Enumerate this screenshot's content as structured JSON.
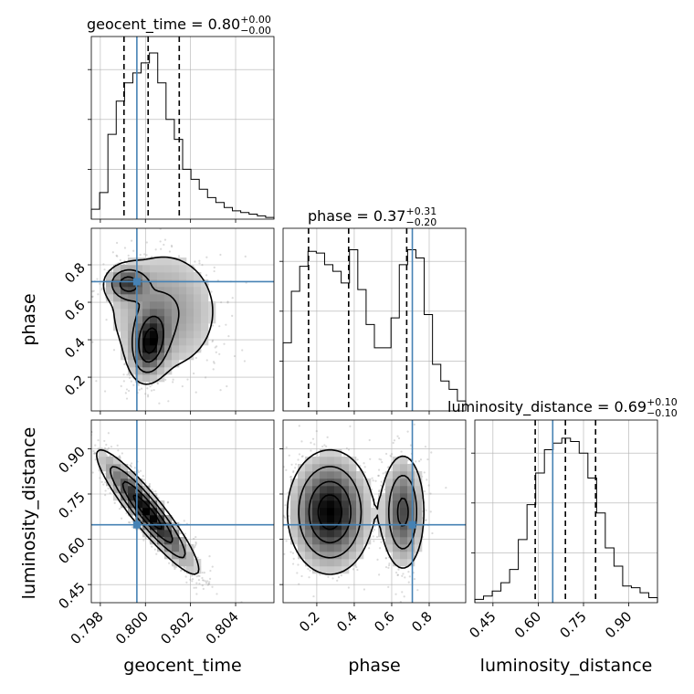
{
  "chart_data": {
    "type": "corner",
    "parameters": [
      "geocent_time",
      "phase",
      "luminosity_distance"
    ],
    "axis_labels": [
      "geocent_time",
      "phase",
      "luminosity_distance"
    ],
    "ranges": {
      "geocent_time": [
        0.7976,
        0.8057
      ],
      "phase": [
        0.02,
        0.995
      ],
      "luminosity_distance": [
        0.39,
        0.995
      ]
    },
    "ticks": {
      "geocent_time": [
        0.798,
        0.8,
        0.802,
        0.804
      ],
      "phase": [
        0.2,
        0.4,
        0.6,
        0.8
      ],
      "luminosity_distance": [
        0.45,
        0.6,
        0.75,
        0.9
      ]
    },
    "tick_labels": {
      "geocent_time": [
        "0.798",
        "0.800",
        "0.802",
        "0.804"
      ],
      "phase": [
        "0.2",
        "0.4",
        "0.6",
        "0.8"
      ],
      "luminosity_distance": [
        "0.45",
        "0.60",
        "0.75",
        "0.90"
      ]
    },
    "titles": [
      {
        "param": "geocent_time",
        "main": "geocent_time = 0.80",
        "sup": "+0.00",
        "sub": "−0.00"
      },
      {
        "param": "phase",
        "main": "phase = 0.37",
        "sup": "+0.31",
        "sub": "−0.20"
      },
      {
        "param": "luminosity_distance",
        "main": "luminosity_distance = 0.69",
        "sup": "+0.10",
        "sub": "−0.10"
      }
    ],
    "truths": {
      "geocent_time": 0.79962,
      "phase": 0.71,
      "luminosity_distance": 0.648
    },
    "quantiles": {
      "geocent_time": [
        0.79905,
        0.80012,
        0.8015
      ],
      "phase": [
        0.156,
        0.37,
        0.68
      ],
      "luminosity_distance": [
        0.59,
        0.69,
        0.79
      ]
    },
    "histograms": {
      "geocent_time": [
        0.06,
        0.16,
        0.51,
        0.71,
        0.82,
        0.88,
        0.94,
        1.0,
        0.82,
        0.6,
        0.48,
        0.3,
        0.24,
        0.18,
        0.13,
        0.1,
        0.07,
        0.05,
        0.04,
        0.03,
        0.02,
        0.01
      ],
      "phase": [
        0.41,
        0.72,
        0.87,
        0.96,
        0.95,
        0.88,
        0.84,
        0.77,
        0.97,
        0.73,
        0.52,
        0.38,
        0.38,
        0.56,
        0.88,
        0.97,
        0.92,
        0.58,
        0.28,
        0.18,
        0.13,
        0.06
      ],
      "luminosity_distance": [
        0.02,
        0.04,
        0.07,
        0.12,
        0.2,
        0.38,
        0.59,
        0.78,
        0.92,
        0.96,
        0.99,
        0.97,
        0.9,
        0.75,
        0.54,
        0.33,
        0.22,
        0.1,
        0.09,
        0.06,
        0.03
      ]
    },
    "grid": true
  }
}
